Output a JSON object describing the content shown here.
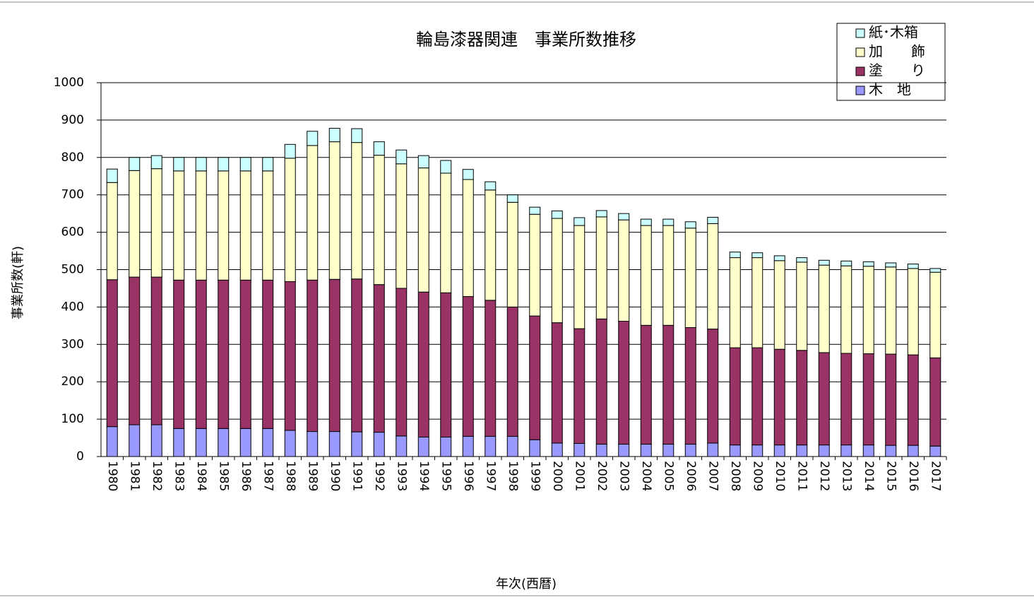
{
  "chart_data": {
    "type": "stacked-bar",
    "title": "輪島漆器関連　事業所数推移",
    "x_label": "年次(西暦)",
    "y_label": "事業所数(軒)",
    "categories": [
      "1980",
      "1981",
      "1982",
      "1983",
      "1984",
      "1985",
      "1986",
      "1987",
      "1988",
      "1989",
      "1990",
      "1991",
      "1992",
      "1993",
      "1994",
      "1995",
      "1996",
      "1997",
      "1998",
      "1999",
      "2000",
      "2001",
      "2002",
      "2003",
      "2004",
      "2005",
      "2006",
      "2007",
      "2008",
      "2009",
      "2010",
      "2011",
      "2012",
      "2013",
      "2014",
      "2015",
      "2016",
      "2017"
    ],
    "series": [
      {
        "name": "木　地",
        "color": "#9999ff",
        "values": [
          80,
          85,
          85,
          75,
          75,
          75,
          75,
          75,
          70,
          67,
          67,
          66,
          65,
          55,
          52,
          52,
          54,
          54,
          54,
          45,
          36,
          35,
          33,
          33,
          33,
          33,
          33,
          36,
          31,
          31,
          31,
          31,
          31,
          31,
          31,
          30,
          30,
          28
        ]
      },
      {
        "name": "塗　　り",
        "color": "#993366",
        "values": [
          393,
          395,
          395,
          397,
          397,
          397,
          397,
          397,
          398,
          405,
          407,
          409,
          395,
          395,
          388,
          386,
          374,
          364,
          346,
          331,
          322,
          307,
          335,
          329,
          318,
          318,
          312,
          305,
          260,
          260,
          256,
          253,
          247,
          245,
          244,
          244,
          242,
          236
        ]
      },
      {
        "name": "加　　飾",
        "color": "#ffffcc",
        "values": [
          260,
          285,
          290,
          292,
          292,
          292,
          292,
          292,
          330,
          360,
          368,
          365,
          346,
          333,
          332,
          320,
          313,
          295,
          280,
          272,
          279,
          276,
          273,
          271,
          267,
          267,
          266,
          282,
          241,
          241,
          237,
          236,
          234,
          234,
          234,
          233,
          231,
          229
        ]
      },
      {
        "name": "紙･木箱",
        "color": "#ccffff",
        "values": [
          36,
          35,
          35,
          36,
          36,
          36,
          36,
          36,
          37,
          38,
          36,
          37,
          36,
          37,
          33,
          34,
          27,
          22,
          20,
          19,
          20,
          21,
          17,
          17,
          17,
          17,
          17,
          17,
          15,
          13,
          13,
          12,
          13,
          13,
          12,
          11,
          12,
          10
        ]
      }
    ],
    "ylim": [
      0,
      1000
    ],
    "yticks": [
      0,
      100,
      200,
      300,
      400,
      500,
      600,
      700,
      800,
      900,
      1000
    ],
    "grid": true
  }
}
